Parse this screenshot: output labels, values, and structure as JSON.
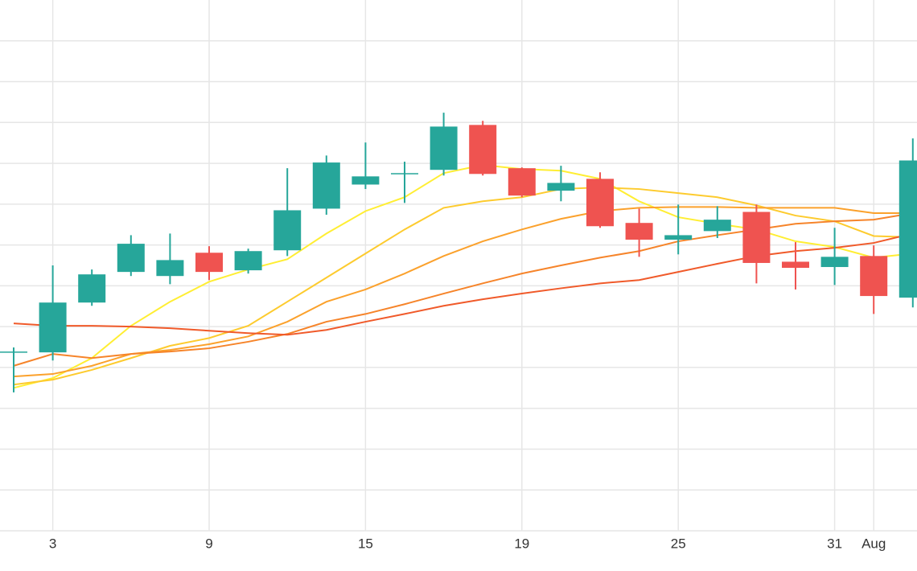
{
  "chart_data": {
    "type": "candlestick",
    "categories": [
      null,
      "3",
      null,
      null,
      null,
      "9",
      null,
      null,
      null,
      "15",
      null,
      null,
      null,
      "19",
      null,
      null,
      null,
      "25",
      null,
      null,
      null,
      "31",
      "Aug",
      null
    ],
    "open": [
      4.37,
      4.37,
      5.59,
      6.34,
      6.24,
      6.81,
      6.38,
      6.87,
      7.89,
      8.48,
      8.74,
      8.84,
      9.94,
      8.88,
      8.33,
      8.62,
      7.54,
      7.13,
      7.34,
      7.81,
      6.59,
      6.46,
      6.73,
      5.71
    ],
    "high": [
      4.49,
      6.5,
      6.4,
      7.24,
      7.28,
      6.97,
      6.91,
      8.88,
      9.19,
      9.51,
      9.04,
      10.24,
      10.04,
      8.9,
      8.94,
      8.78,
      7.89,
      7.99,
      7.95,
      7.99,
      7.07,
      7.42,
      6.99,
      9.61
    ],
    "low": [
      3.39,
      4.17,
      5.51,
      6.24,
      6.04,
      6.14,
      6.3,
      6.73,
      7.74,
      8.37,
      8.03,
      8.7,
      8.7,
      8.17,
      8.07,
      7.42,
      6.71,
      6.77,
      7.17,
      6.06,
      5.91,
      6.02,
      5.31,
      5.47
    ],
    "close": [
      4.39,
      5.59,
      6.28,
      7.03,
      6.63,
      6.34,
      6.85,
      7.85,
      9.02,
      8.68,
      8.76,
      9.9,
      8.74,
      8.21,
      8.52,
      7.46,
      7.13,
      7.24,
      7.62,
      6.56,
      6.44,
      6.71,
      5.75,
      9.07
    ],
    "up_color": "#26a69a",
    "down_color": "#ef5350",
    "series": [
      {
        "color": "#ffee33",
        "values": [
          3.5,
          3.74,
          4.23,
          5.02,
          5.61,
          6.1,
          6.4,
          6.65,
          7.28,
          7.83,
          8.17,
          8.76,
          8.96,
          8.86,
          8.82,
          8.62,
          8.07,
          7.68,
          7.52,
          7.38,
          7.09,
          6.95,
          6.69,
          6.79
        ]
      },
      {
        "color": "#fdcb2e",
        "values": [
          3.58,
          3.7,
          3.94,
          4.23,
          4.53,
          4.72,
          5.02,
          5.61,
          6.2,
          6.79,
          7.38,
          7.91,
          8.07,
          8.17,
          8.37,
          8.41,
          8.37,
          8.27,
          8.17,
          7.97,
          7.72,
          7.58,
          7.22,
          7.19
        ]
      },
      {
        "color": "#fba12c",
        "values": [
          3.78,
          3.84,
          4.04,
          4.33,
          4.43,
          4.57,
          4.76,
          5.12,
          5.61,
          5.91,
          6.3,
          6.73,
          7.09,
          7.38,
          7.64,
          7.83,
          7.91,
          7.93,
          7.93,
          7.91,
          7.91,
          7.91,
          7.78,
          7.78
        ]
      },
      {
        "color": "#f6842a",
        "values": [
          4.04,
          4.33,
          4.23,
          4.33,
          4.39,
          4.47,
          4.63,
          4.82,
          5.12,
          5.31,
          5.55,
          5.81,
          6.06,
          6.3,
          6.5,
          6.69,
          6.85,
          7.09,
          7.24,
          7.38,
          7.52,
          7.58,
          7.62,
          7.78
        ]
      },
      {
        "color": "#f05a2a",
        "values": [
          5.08,
          5.02,
          5.02,
          5.0,
          4.96,
          4.9,
          4.84,
          4.8,
          4.92,
          5.12,
          5.31,
          5.51,
          5.67,
          5.81,
          5.94,
          6.06,
          6.14,
          6.34,
          6.54,
          6.73,
          6.85,
          6.93,
          7.05,
          7.28
        ]
      }
    ],
    "ylim": [
      0,
      13
    ],
    "yticks": [
      0,
      1,
      2,
      3,
      4,
      5,
      6,
      7,
      8,
      9,
      10,
      11,
      12
    ],
    "grid": true
  }
}
